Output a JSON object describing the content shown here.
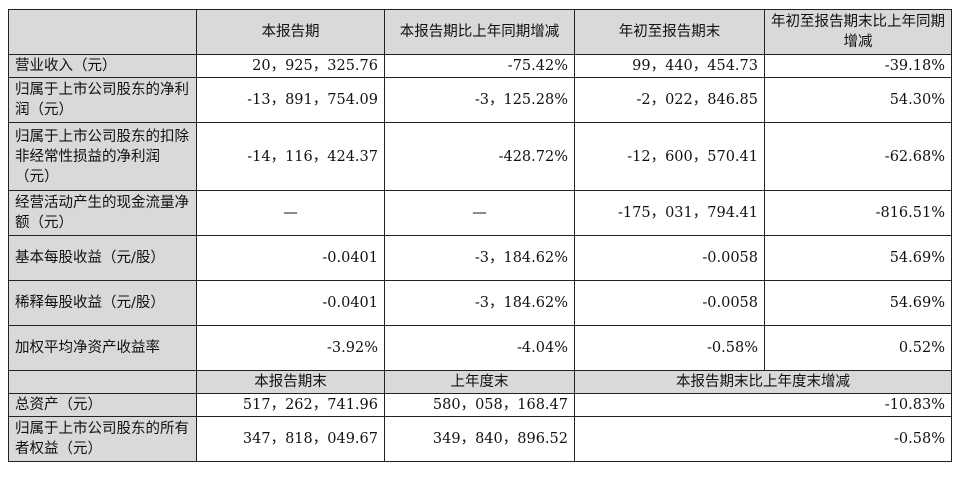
{
  "header": {
    "c0": "",
    "c1": "本报告期",
    "c2": "本报告期比上年同期增减",
    "c3": "年初至报告期末",
    "c4": "年初至报告期末比上年同期增减"
  },
  "rows": [
    {
      "label": "营业收入（元）",
      "v1": "20，925，325.76",
      "v2": "-75.42%",
      "v3": "99，440，454.73",
      "v4": "-39.18%"
    },
    {
      "label": "归属于上市公司股东的净利润（元）",
      "v1": "-13，891，754.09",
      "v2": "-3，125.28%",
      "v3": "-2，022，846.85",
      "v4": "54.30%"
    },
    {
      "label": "归属于上市公司股东的扣除非经常性损益的净利润（元）",
      "v1": "-14，116，424.37",
      "v2": "-428.72%",
      "v3": "-12，600，570.41",
      "v4": "-62.68%"
    },
    {
      "label": "经营活动产生的现金流量净额（元）",
      "v1": "—",
      "v2": "—",
      "v3": "-175，031，794.41",
      "v4": "-816.51%"
    },
    {
      "label": "基本每股收益（元/股）",
      "v1": "-0.0401",
      "v2": "-3，184.62%",
      "v3": "-0.0058",
      "v4": "54.69%"
    },
    {
      "label": "稀释每股收益（元/股）",
      "v1": "-0.0401",
      "v2": "-3，184.62%",
      "v3": "-0.0058",
      "v4": "54.69%"
    },
    {
      "label": "加权平均净资产收益率",
      "v1": "-3.92%",
      "v2": "-4.04%",
      "v3": "-0.58%",
      "v4": "0.52%"
    }
  ],
  "header2": {
    "c0": "",
    "c1": "本报告期末",
    "c2": "上年度末",
    "c3": "本报告期末比上年度末增减"
  },
  "rows2": [
    {
      "label": "总资产（元）",
      "v1": "517，262，741.96",
      "v2": "580，058，168.47",
      "v3": "-10.83%"
    },
    {
      "label": "归属于上市公司股东的所有者权益（元）",
      "v1": "347，818，049.67",
      "v2": "349，840，896.52",
      "v3": "-0.58%"
    }
  ]
}
